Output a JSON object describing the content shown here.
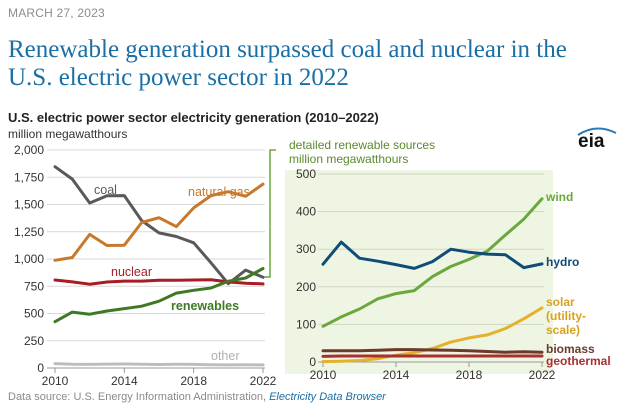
{
  "date": "MARCH 27, 2023",
  "headline": "Renewable generation surpassed coal and nuclear in the U.S. electric power sector in 2022",
  "chart_title": "U.S. electric power sector electricity generation (2010–2022)",
  "unit_left": "million megawatthours",
  "right_subtitle": "detailed renewable sources",
  "unit_right": "million megawatthours",
  "logo_text": "eia",
  "source_label": "Data source:",
  "source_text": "U.S. Energy Information Administration,",
  "source_link": "Electricity Data Browser",
  "colors": {
    "coal": "#595959",
    "natural_gas": "#c8782a",
    "nuclear": "#a61d25",
    "renewables": "#3e7a25",
    "other": "#bdbdbd",
    "wind": "#6aa83e",
    "hydro": "#0f4d78",
    "solar": "#e6b12a",
    "biomass": "#6b3a2a",
    "geothermal": "#a83030",
    "title_blue": "#1a6fa6",
    "panel_bg": "#eef5e2"
  },
  "chart_data": [
    {
      "type": "line",
      "title": "U.S. electric power sector electricity generation (2010–2022)",
      "ylabel": "million megawatthours",
      "xlim": [
        2010,
        2022
      ],
      "ylim": [
        0,
        2000
      ],
      "x": [
        2010,
        2011,
        2012,
        2013,
        2014,
        2015,
        2016,
        2017,
        2018,
        2019,
        2020,
        2021,
        2022
      ],
      "x_ticks": [
        "2010",
        "2014",
        "2018",
        "2022"
      ],
      "y_ticks": [
        "0",
        "250",
        "500",
        "750",
        "1,000",
        "1,250",
        "1,500",
        "1,750",
        "2,000"
      ],
      "series": [
        {
          "name": "coal",
          "key": "coal",
          "values": [
            1847,
            1733,
            1514,
            1581,
            1582,
            1352,
            1239,
            1206,
            1149,
            965,
            773,
            898,
            832
          ]
        },
        {
          "name": "natural gas",
          "key": "natural_gas",
          "values": [
            988,
            1014,
            1226,
            1124,
            1127,
            1335,
            1379,
            1297,
            1469,
            1582,
            1617,
            1575,
            1687
          ]
        },
        {
          "name": "nuclear",
          "key": "nuclear",
          "values": [
            807,
            790,
            769,
            789,
            797,
            797,
            805,
            805,
            807,
            809,
            790,
            778,
            772
          ]
        },
        {
          "name": "renewables",
          "key": "renewables",
          "values": [
            425,
            513,
            494,
            523,
            545,
            567,
            613,
            687,
            713,
            734,
            796,
            826,
            913
          ]
        },
        {
          "name": "other",
          "key": "other",
          "values": [
            40,
            35,
            33,
            36,
            37,
            35,
            32,
            34,
            33,
            30,
            28,
            29,
            28
          ]
        }
      ]
    },
    {
      "type": "line",
      "title": "detailed renewable sources",
      "ylabel": "million megawatthours",
      "xlim": [
        2010,
        2022
      ],
      "ylim": [
        0,
        500
      ],
      "x": [
        2010,
        2011,
        2012,
        2013,
        2014,
        2015,
        2016,
        2017,
        2018,
        2019,
        2020,
        2021,
        2022
      ],
      "x_ticks": [
        "2010",
        "2014",
        "2018",
        "2022"
      ],
      "y_ticks": [
        "0",
        "100",
        "200",
        "300",
        "400",
        "500"
      ],
      "series": [
        {
          "name": "wind",
          "key": "wind",
          "values": [
            95,
            120,
            141,
            168,
            182,
            190,
            227,
            254,
            273,
            295,
            338,
            380,
            434
          ]
        },
        {
          "name": "hydro",
          "key": "hydro",
          "values": [
            260,
            319,
            276,
            268,
            259,
            249,
            267,
            300,
            292,
            287,
            285,
            251,
            261
          ]
        },
        {
          "name": "solar (utility-scale)",
          "key": "solar",
          "values": [
            1,
            2,
            4,
            9,
            18,
            25,
            36,
            53,
            64,
            72,
            89,
            115,
            144
          ]
        },
        {
          "name": "biomass",
          "key": "biomass",
          "values": [
            30,
            30,
            30,
            31,
            33,
            33,
            32,
            31,
            30,
            28,
            26,
            27,
            26
          ]
        },
        {
          "name": "geothermal",
          "key": "geothermal",
          "values": [
            15,
            16,
            16,
            16,
            16,
            16,
            16,
            16,
            16,
            16,
            16,
            16,
            16
          ]
        }
      ]
    }
  ],
  "labels": {
    "coal": "coal",
    "natural_gas": "natural gas",
    "nuclear": "nuclear",
    "renewables": "renewables",
    "other": "other",
    "wind": "wind",
    "hydro": "hydro",
    "solar_1": "solar",
    "solar_2": "(utility-",
    "solar_3": "scale)",
    "biomass": "biomass",
    "geothermal": "geothermal"
  }
}
